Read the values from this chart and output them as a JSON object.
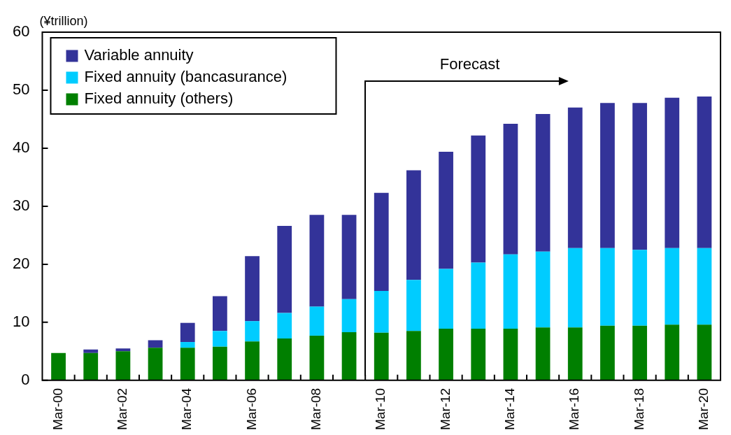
{
  "chart_data": {
    "type": "bar",
    "stacked": true,
    "ylabel": "(¥trillion)",
    "categories": [
      "Mar-00",
      null,
      "Mar-02",
      null,
      "Mar-04",
      null,
      "Mar-06",
      null,
      "Mar-08",
      null,
      "Mar-10",
      null,
      "Mar-12",
      null,
      "Mar-14",
      null,
      "Mar-16",
      null,
      "Mar-18",
      null,
      "Mar-20"
    ],
    "series": [
      {
        "name": "Fixed annuity (others)",
        "color": "#007f00",
        "values": [
          4.7,
          4.7,
          5.0,
          5.6,
          5.6,
          5.8,
          6.7,
          7.2,
          7.7,
          8.3,
          8.2,
          8.5,
          8.9,
          8.9,
          8.9,
          9.1,
          9.1,
          9.4,
          9.4,
          9.6,
          9.6
        ]
      },
      {
        "name": "Fixed annuity (bancasurance)",
        "color": "#00ccff",
        "values": [
          0,
          0,
          0,
          0,
          1.0,
          2.7,
          3.5,
          4.4,
          5.0,
          5.7,
          7.2,
          8.8,
          10.3,
          11.4,
          12.8,
          13.1,
          13.7,
          13.4,
          13.1,
          13.2,
          13.2
        ]
      },
      {
        "name": "Variable annuity",
        "color": "#333399",
        "values": [
          0,
          0.6,
          0.5,
          1.3,
          3.3,
          6.0,
          11.2,
          15.0,
          15.8,
          14.5,
          16.9,
          18.9,
          20.2,
          21.9,
          22.5,
          23.7,
          24.2,
          25.0,
          25.3,
          25.9,
          26.1
        ]
      }
    ],
    "ylim": [
      0,
      60
    ],
    "yticks": [
      0,
      10,
      20,
      30,
      40,
      50,
      60
    ],
    "grid": false,
    "legend": "top left",
    "annotations": [
      "Forecast"
    ]
  }
}
